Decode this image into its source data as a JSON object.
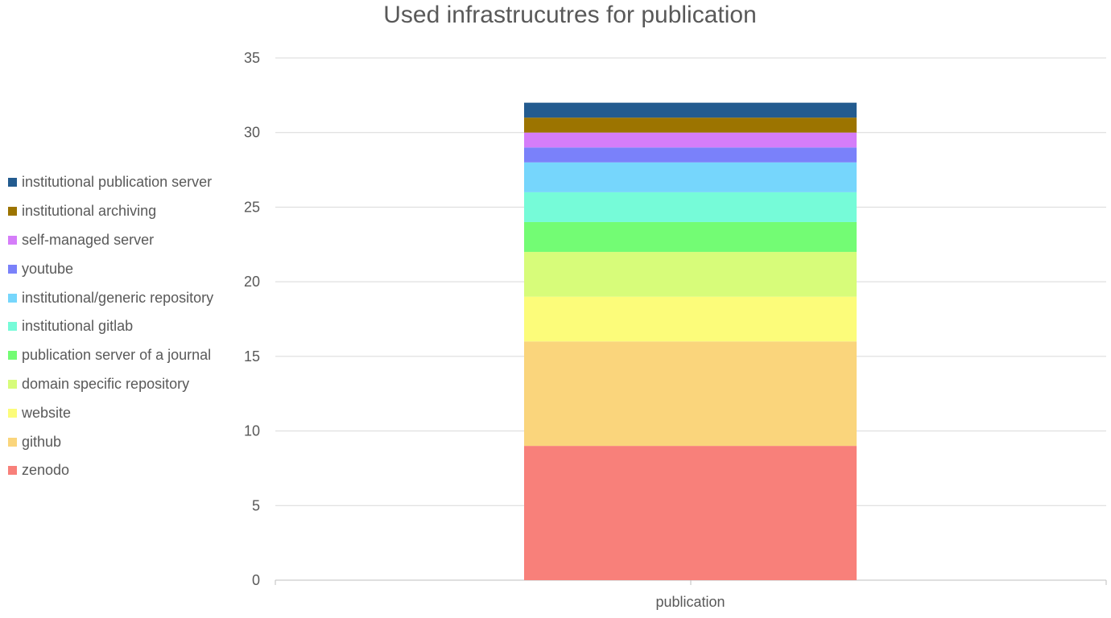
{
  "chart_data": {
    "type": "bar",
    "stacked": true,
    "title": "Used infrastrucutres for publication",
    "xlabel": "",
    "ylabel": "",
    "categories": [
      "publication"
    ],
    "ylim": [
      0,
      35
    ],
    "yticks": [
      0,
      5,
      10,
      15,
      20,
      25,
      30,
      35
    ],
    "grid": true,
    "legend_position": "left",
    "series": [
      {
        "name": "zenodo",
        "values": [
          9
        ],
        "color": "#F8807A"
      },
      {
        "name": "github",
        "values": [
          7
        ],
        "color": "#FAD57C"
      },
      {
        "name": "website",
        "values": [
          3
        ],
        "color": "#FCFC7A"
      },
      {
        "name": "domain specific repository",
        "values": [
          3
        ],
        "color": "#D7FC7A"
      },
      {
        "name": "publication server of a journal",
        "values": [
          2
        ],
        "color": "#73FC74"
      },
      {
        "name": "institutional gitlab",
        "values": [
          2
        ],
        "color": "#76FBD8"
      },
      {
        "name": "institutional/generic repository",
        "values": [
          2
        ],
        "color": "#76D6FC"
      },
      {
        "name": "youtube",
        "values": [
          1
        ],
        "color": "#7A81FA"
      },
      {
        "name": "self-managed server",
        "values": [
          1
        ],
        "color": "#D57DF9"
      },
      {
        "name": "institutional archiving",
        "values": [
          1
        ],
        "color": "#9C7400"
      },
      {
        "name": "institutional publication server",
        "values": [
          1
        ],
        "color": "#235B8F"
      }
    ]
  }
}
